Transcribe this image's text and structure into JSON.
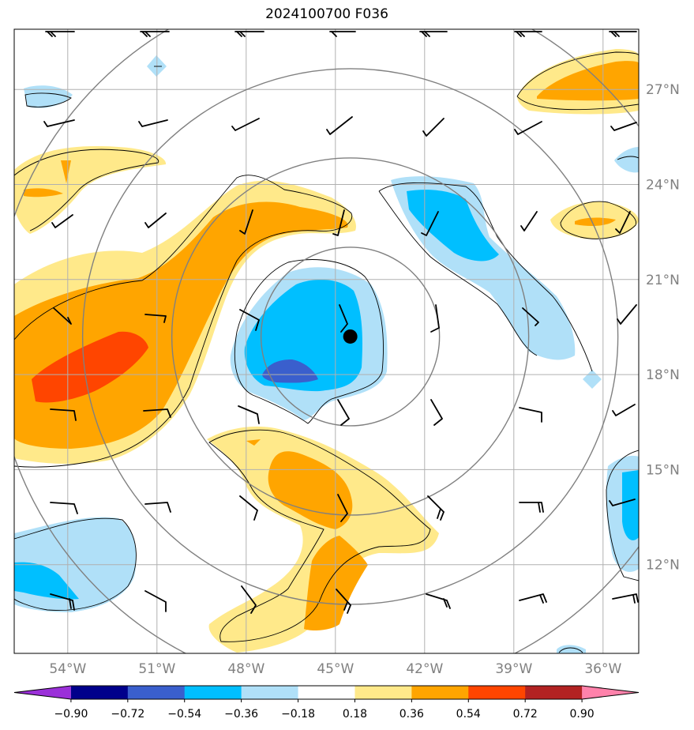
{
  "title": "2024100700 F036",
  "map": {
    "lon_range": [
      -55.8,
      -34.8
    ],
    "lat_range": [
      9.2,
      28.9
    ],
    "lon_ticks": [
      -54,
      -51,
      -48,
      -45,
      -42,
      -39,
      -36
    ],
    "lon_tick_labels": [
      "54°W",
      "51°W",
      "48°W",
      "45°W",
      "42°W",
      "39°W",
      "36°W"
    ],
    "lat_ticks": [
      12,
      15,
      18,
      21,
      24,
      27
    ],
    "lat_tick_labels": [
      "12°N",
      "15°N",
      "18°N",
      "21°N",
      "24°N",
      "27°N"
    ],
    "grid": true,
    "storm_center": {
      "lon": -44.5,
      "lat": 19.2
    },
    "range_rings_deg": [
      3,
      6,
      9,
      12
    ]
  },
  "colorbar": {
    "levels": [
      "−0.90",
      "−0.72",
      "−0.54",
      "−0.36",
      "−0.18",
      "0.18",
      "0.36",
      "0.54",
      "0.72",
      "0.90"
    ],
    "colors": [
      "#9b30d9",
      "#00008b",
      "#3a5fcd",
      "#00bfff",
      "#b0e0f8",
      "#ffffff",
      "#ffe98a",
      "#ffa500",
      "#ff4500",
      "#b22222",
      "#ff82ab"
    ],
    "extend": "both"
  },
  "colors": {
    "grid": "#b0b0b0",
    "rings": "#808080",
    "barbs": "#000000"
  }
}
